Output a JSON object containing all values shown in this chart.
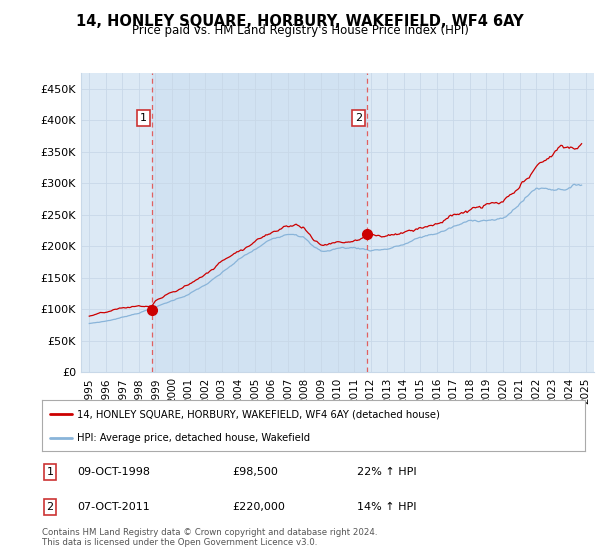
{
  "title": "14, HONLEY SQUARE, HORBURY, WAKEFIELD, WF4 6AY",
  "subtitle": "Price paid vs. HM Land Registry's House Price Index (HPI)",
  "legend_line1": "14, HONLEY SQUARE, HORBURY, WAKEFIELD, WF4 6AY (detached house)",
  "legend_line2": "HPI: Average price, detached house, Wakefield",
  "footnote": "Contains HM Land Registry data © Crown copyright and database right 2024.\nThis data is licensed under the Open Government Licence v3.0.",
  "transaction1_date": "09-OCT-1998",
  "transaction1_price": "£98,500",
  "transaction1_hpi": "22% ↑ HPI",
  "transaction1_x": 1998.77,
  "transaction1_y": 98500,
  "transaction2_date": "07-OCT-2011",
  "transaction2_price": "£220,000",
  "transaction2_hpi": "14% ↑ HPI",
  "transaction2_x": 2011.77,
  "transaction2_y": 220000,
  "vline1_x": 1998.77,
  "vline2_x": 2011.77,
  "red_color": "#cc0000",
  "blue_color": "#89b4d9",
  "shade_color": "#dce9f5",
  "plot_bg_left": "#eef4fb",
  "plot_bg_right": "#f5f8fc",
  "grid_color": "#c8d8e8",
  "ylim": [
    0,
    475000
  ],
  "xlim_start": 1994.5,
  "xlim_end": 2025.5,
  "yticks": [
    0,
    50000,
    100000,
    150000,
    200000,
    250000,
    300000,
    350000,
    400000,
    450000
  ],
  "ytick_labels": [
    "£0",
    "£50K",
    "£100K",
    "£150K",
    "£200K",
    "£250K",
    "£300K",
    "£350K",
    "£400K",
    "£450K"
  ],
  "xticks": [
    1995,
    1996,
    1997,
    1998,
    1999,
    2000,
    2001,
    2002,
    2003,
    2004,
    2005,
    2006,
    2007,
    2008,
    2009,
    2010,
    2011,
    2012,
    2013,
    2014,
    2015,
    2016,
    2017,
    2018,
    2019,
    2020,
    2021,
    2022,
    2023,
    2024,
    2025
  ]
}
